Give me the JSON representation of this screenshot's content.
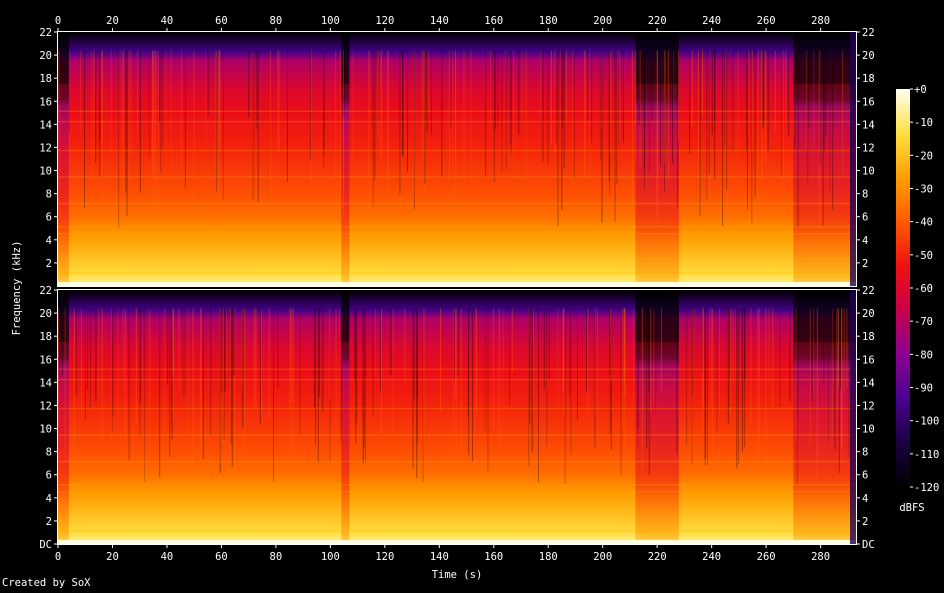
{
  "chart_data": {
    "type": "heatmap",
    "title": "",
    "xlabel": "Time (s)",
    "ylabel": "Frequency (kHz)",
    "x_ticks": [
      "0",
      "20",
      "40",
      "60",
      "80",
      "100",
      "120",
      "140",
      "160",
      "180",
      "200",
      "220",
      "240",
      "260",
      "280"
    ],
    "x_range": [
      0,
      293
    ],
    "y_ticks": [
      "DC",
      "2",
      "4",
      "6",
      "8",
      "10",
      "12",
      "14",
      "16",
      "18",
      "20",
      "22"
    ],
    "y_range_khz": [
      0,
      22
    ],
    "channels": [
      {
        "position": "top",
        "description": "channel 1"
      },
      {
        "position": "bottom",
        "description": "channel 2"
      }
    ],
    "colorbar": {
      "label": "dBFS",
      "ticks": [
        "+0",
        "-10",
        "-20",
        "-30",
        "-40",
        "-50",
        "-60",
        "-70",
        "-80",
        "-90",
        "-100",
        "-110",
        "-120"
      ],
      "range": [
        -120,
        0
      ],
      "colors": [
        "#000000",
        "#1a0040",
        "#4a0090",
        "#8a0090",
        "#c8004a",
        "#f01010",
        "#ff5a00",
        "#ffa000",
        "#ffe040",
        "#fffff0"
      ]
    },
    "band_profile_khz_db": [
      {
        "f": 0.3,
        "db": -8
      },
      {
        "f": 1,
        "db": -14
      },
      {
        "f": 2,
        "db": -18
      },
      {
        "f": 3,
        "db": -22
      },
      {
        "f": 4.5,
        "db": -28
      },
      {
        "f": 6,
        "db": -36
      },
      {
        "f": 8,
        "db": -42
      },
      {
        "f": 12,
        "db": -50
      },
      {
        "f": 15,
        "db": -55
      },
      {
        "f": 17,
        "db": -60
      },
      {
        "f": 19.5,
        "db": -72
      },
      {
        "f": 20.3,
        "db": -95
      },
      {
        "f": 22,
        "db": -120
      }
    ],
    "quiet_segments_s": [
      [
        0,
        4
      ],
      [
        104,
        107
      ],
      [
        212,
        228
      ],
      [
        270,
        292
      ],
      [
        292,
        293
      ]
    ]
  },
  "footer": {
    "credit": "Created by SoX"
  }
}
